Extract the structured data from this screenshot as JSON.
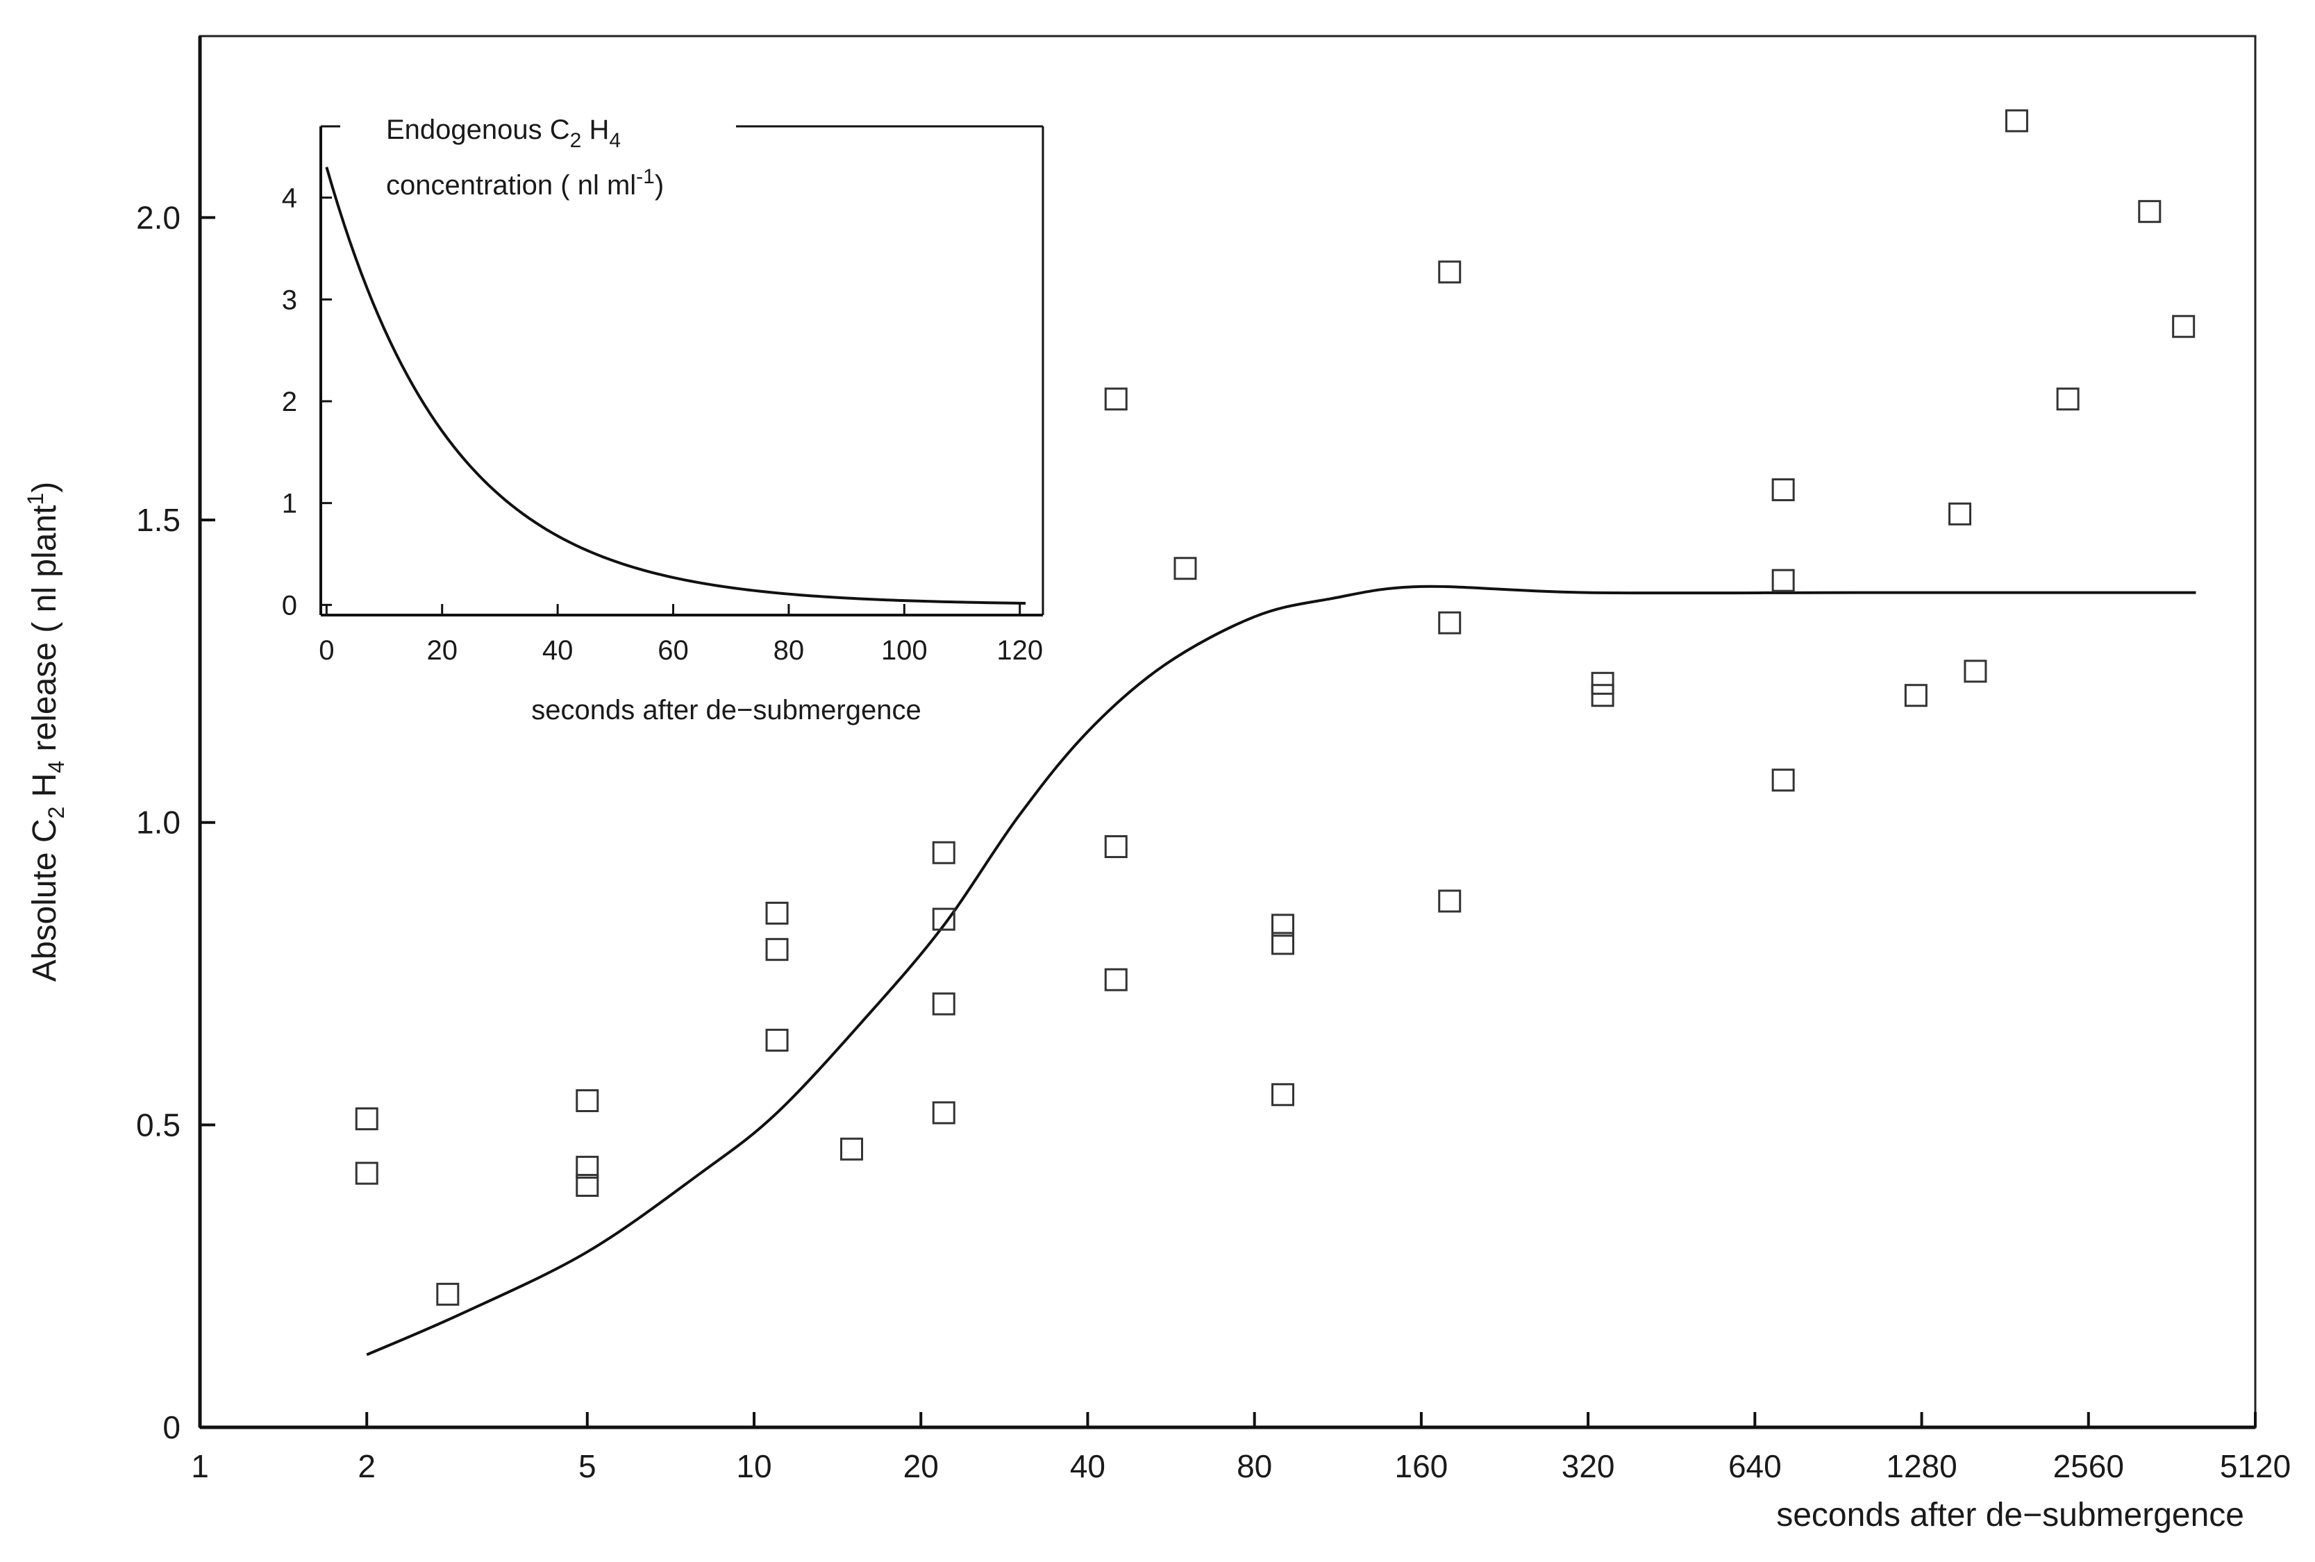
{
  "chart_data": [
    {
      "type": "scatter",
      "x_scale": "log2",
      "xlabel": "seconds after de−submergence",
      "ylabel_parts": {
        "prefix": "Absolute C",
        "sub1": "2",
        "mid": " H",
        "sub2": "4",
        "suffix": " release ( nl plant",
        "sup": "1",
        "end": ")"
      },
      "xticks": [
        1,
        2,
        5,
        10,
        20,
        40,
        80,
        160,
        320,
        640,
        1280,
        2560,
        5120
      ],
      "xtick_labels": [
        "1",
        "2",
        "5",
        "10",
        "20",
        "40",
        "80",
        "160",
        "320",
        "640",
        "1280",
        "2560",
        "5120"
      ],
      "yticks": [
        0,
        0.5,
        1.0,
        1.5,
        2.0
      ],
      "ytick_labels": [
        "0",
        "0.5",
        "1.0",
        "1.5",
        "2.0"
      ],
      "xlim": [
        1,
        5120
      ],
      "ylim": [
        0,
        2.3
      ],
      "grid": false,
      "series": [
        {
          "type": "scatter",
          "marker": "open-square",
          "points": [
            [
              2,
              0.51
            ],
            [
              2,
              0.42
            ],
            [
              2.8,
              0.22
            ],
            [
              5,
              0.54
            ],
            [
              5,
              0.43
            ],
            [
              5,
              0.4
            ],
            [
              11,
              0.85
            ],
            [
              11,
              0.79
            ],
            [
              11,
              0.64
            ],
            [
              15,
              0.46
            ],
            [
              22,
              0.95
            ],
            [
              22,
              0.84
            ],
            [
              22,
              0.7
            ],
            [
              22,
              0.52
            ],
            [
              45,
              1.7
            ],
            [
              45,
              0.96
            ],
            [
              45,
              0.74
            ],
            [
              60,
              1.42
            ],
            [
              90,
              0.83
            ],
            [
              90,
              0.8
            ],
            [
              90,
              0.55
            ],
            [
              180,
              1.91
            ],
            [
              180,
              1.33
            ],
            [
              180,
              0.87
            ],
            [
              340,
              1.23
            ],
            [
              340,
              1.21
            ],
            [
              720,
              1.55
            ],
            [
              720,
              1.4
            ],
            [
              720,
              1.07
            ],
            [
              1250,
              1.21
            ],
            [
              1500,
              1.51
            ],
            [
              1600,
              1.25
            ],
            [
              1900,
              2.16
            ],
            [
              2350,
              1.7
            ],
            [
              3300,
              2.01
            ],
            [
              3800,
              1.82
            ]
          ]
        },
        {
          "type": "line",
          "points": [
            [
              2,
              0.12
            ],
            [
              3,
              0.19
            ],
            [
              5,
              0.29
            ],
            [
              8,
              0.42
            ],
            [
              11,
              0.52
            ],
            [
              16,
              0.68
            ],
            [
              22,
              0.83
            ],
            [
              30,
              1.01
            ],
            [
              40,
              1.15
            ],
            [
              55,
              1.26
            ],
            [
              80,
              1.34
            ],
            [
              110,
              1.37
            ],
            [
              160,
              1.39
            ],
            [
              320,
              1.38
            ],
            [
              1000,
              1.38
            ],
            [
              4000,
              1.38
            ]
          ]
        }
      ]
    },
    {
      "type": "line",
      "title_parts": {
        "line1_prefix": "Endogenous C",
        "line1_sub1": "2",
        "line1_mid": " H",
        "line1_sub2": "4",
        "line2_prefix": "concentration ( nl ml",
        "line2_sup": "-1",
        "line2_suffix": ")"
      },
      "xlabel": "seconds after de−submergence",
      "xticks": [
        0,
        20,
        40,
        60,
        80,
        100,
        120
      ],
      "xtick_labels": [
        "0",
        "20",
        "40",
        "60",
        "80",
        "100",
        "120"
      ],
      "yticks": [
        0,
        1,
        2,
        3,
        4
      ],
      "ytick_labels": [
        "0",
        "1",
        "2",
        "3",
        "4"
      ],
      "xlim": [
        -1,
        124
      ],
      "ylim": [
        -0.1,
        4.7
      ],
      "curve": {
        "form": "exponential decay",
        "y0": 4.3,
        "half_life_seconds": 15
      }
    }
  ]
}
